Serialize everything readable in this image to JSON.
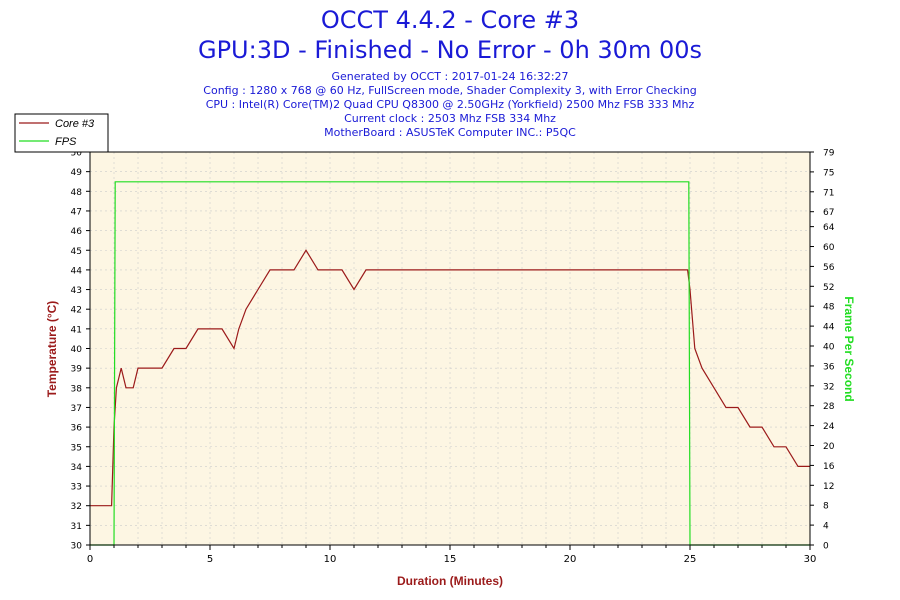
{
  "header": {
    "title": "OCCT 4.4.2 - Core #3",
    "subtitle": "GPU:3D - Finished - No Error - 0h 30m 00s",
    "info_lines": [
      "Generated by OCCT : 2017-01-24 16:32:27",
      "Config : 1280 x 768 @ 60 Hz, FullScreen mode, Shader Complexity 3, with Error Checking",
      "CPU : Intel(R) Core(TM)2 Quad CPU Q8300 @ 2.50GHz (Yorkfield) 2500 Mhz FSB 333 Mhz",
      "Current clock : 2503 Mhz FSB 334 Mhz",
      "MotherBoard : ASUSTeK Computer INC.: P5QC"
    ]
  },
  "colors": {
    "temperature": "#9b1a1a",
    "fps": "#22dd22",
    "plot_bg": "#fdf6e3",
    "grid": "#cccccc",
    "title": "#1a1ad6"
  },
  "chart_data": {
    "type": "line",
    "xlabel": "Duration (Minutes)",
    "ylabel_left": "Temperature (°C)",
    "ylabel_right": "Frame Per Second",
    "xlim": [
      0,
      30
    ],
    "ylim_left": [
      30,
      50
    ],
    "ylim_right": [
      0,
      79
    ],
    "x_ticks": [
      0,
      5,
      10,
      15,
      20,
      25,
      30
    ],
    "y_left_ticks": [
      30,
      31,
      32,
      33,
      34,
      35,
      36,
      37,
      38,
      39,
      40,
      41,
      42,
      43,
      44,
      45,
      46,
      47,
      48,
      49,
      50
    ],
    "y_right_ticks": [
      0,
      4,
      8,
      12,
      16,
      20,
      24,
      28,
      32,
      36,
      40,
      44,
      48,
      52,
      56,
      60,
      64,
      67,
      71,
      75,
      79
    ],
    "grid": true,
    "legend_position": "top-left",
    "legend": [
      "Core #3",
      "FPS"
    ],
    "series": [
      {
        "name": "Core #3",
        "axis": "left",
        "x": [
          0.0,
          0.5,
          0.9,
          1.0,
          1.1,
          1.3,
          1.5,
          1.8,
          2.0,
          2.5,
          3.0,
          3.5,
          4.0,
          4.5,
          5.0,
          5.5,
          6.0,
          6.2,
          6.5,
          7.0,
          7.5,
          8.0,
          8.5,
          9.0,
          9.5,
          10.0,
          10.5,
          11.0,
          11.5,
          12.0,
          12.5,
          13.0,
          13.5,
          14.0,
          14.5,
          15.0,
          15.5,
          16.0,
          16.5,
          17.0,
          17.5,
          18.0,
          18.5,
          19.0,
          19.5,
          20.0,
          20.5,
          21.0,
          21.5,
          22.0,
          22.5,
          23.0,
          23.5,
          24.0,
          24.5,
          24.9,
          25.0,
          25.2,
          25.5,
          26.0,
          26.5,
          27.0,
          27.5,
          28.0,
          28.5,
          29.0,
          29.5,
          30.0
        ],
        "y": [
          32,
          32,
          32,
          36,
          38,
          39,
          38,
          38,
          39,
          39,
          39,
          40,
          40,
          41,
          41,
          41,
          40,
          41,
          42,
          43,
          44,
          44,
          44,
          45,
          44,
          44,
          44,
          43,
          44,
          44,
          44,
          44,
          44,
          44,
          44,
          44,
          44,
          44,
          44,
          44,
          44,
          44,
          44,
          44,
          44,
          44,
          44,
          44,
          44,
          44,
          44,
          44,
          44,
          44,
          44,
          44,
          43,
          40,
          39,
          38,
          37,
          37,
          36,
          36,
          35,
          35,
          34,
          34
        ]
      },
      {
        "name": "FPS",
        "axis": "right",
        "x": [
          0.0,
          1.0,
          1.05,
          1.2,
          2,
          3,
          4,
          5,
          6,
          7,
          8,
          9,
          10,
          11,
          12,
          13,
          14,
          15,
          16,
          17,
          18,
          19,
          20,
          21,
          22,
          23,
          24,
          24.9,
          24.95,
          25.0,
          30.0
        ],
        "y": [
          0,
          0,
          73,
          73,
          73,
          73,
          73,
          73,
          73,
          73,
          73,
          73,
          73,
          73,
          73,
          73,
          73,
          73,
          73,
          73,
          73,
          73,
          73,
          73,
          73,
          73,
          73,
          73,
          73,
          0,
          0
        ]
      }
    ]
  }
}
